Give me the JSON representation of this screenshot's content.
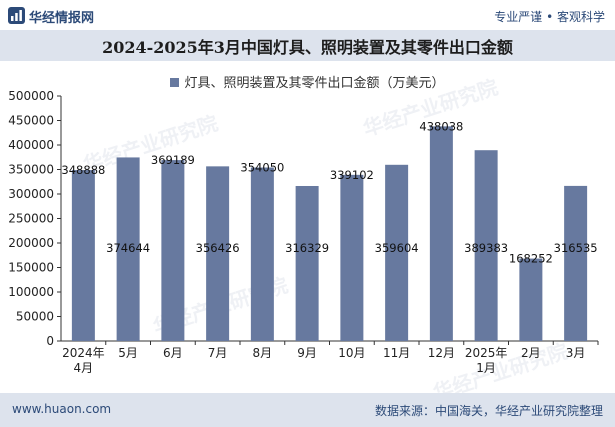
{
  "header": {
    "brand": "华经情报网",
    "tagline": "专业严谨 • 客观科学"
  },
  "chart_data": {
    "type": "bar",
    "title": "2024-2025年3月中国灯具、照明装置及其零件出口金额",
    "categories": [
      [
        "2024年",
        "4月"
      ],
      [
        "5月"
      ],
      [
        "6月"
      ],
      [
        "7月"
      ],
      [
        "8月"
      ],
      [
        "9月"
      ],
      [
        "10月"
      ],
      [
        "11月"
      ],
      [
        "12月"
      ],
      [
        "2025年",
        "1月"
      ],
      [
        "2月"
      ],
      [
        "3月"
      ]
    ],
    "series": [
      {
        "name": "灯具、照明装置及其零件出口金额（万美元）",
        "color": "#67799f",
        "values": [
          348888,
          374644,
          369189,
          356426,
          354050,
          316329,
          339102,
          359604,
          438038,
          389383,
          168252,
          316535
        ]
      }
    ],
    "ylim": [
      0,
      500000
    ],
    "yticks": [
      0,
      50000,
      100000,
      150000,
      200000,
      250000,
      300000,
      350000,
      400000,
      450000,
      500000
    ],
    "grid": false,
    "legend": "top-center"
  },
  "watermark": "华经产业研究院",
  "footer": {
    "website": "www.huaon.com",
    "source": "数据来源：中国海关，华经产业研究院整理"
  }
}
